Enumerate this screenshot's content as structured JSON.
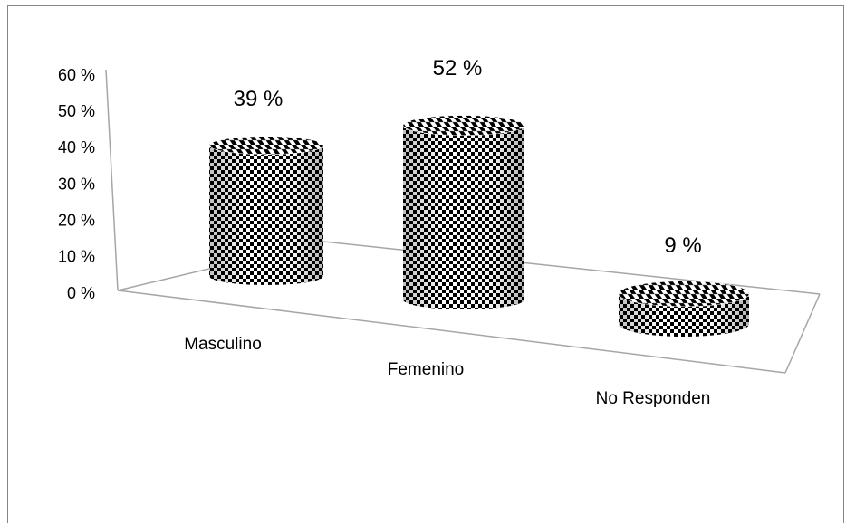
{
  "chart_data": {
    "type": "bar",
    "style": "3d-cylinder",
    "categories": [
      "Masculino",
      "Femenino",
      "No Responden"
    ],
    "values": [
      39,
      52,
      9
    ],
    "data_labels": [
      "39 %",
      "52 %",
      "9 %"
    ],
    "y_ticks": [
      "0 %",
      "10 %",
      "20 %",
      "30 %",
      "40 %",
      "50 %",
      "60 %"
    ],
    "ylim": [
      0,
      60
    ],
    "title": "",
    "xlabel": "",
    "ylabel": "",
    "grid": false,
    "fill_pattern": "checkerboard",
    "colors": {
      "pattern_dark": "#000000",
      "pattern_light": "#ffffff",
      "axis": "#a6a6a6"
    }
  }
}
